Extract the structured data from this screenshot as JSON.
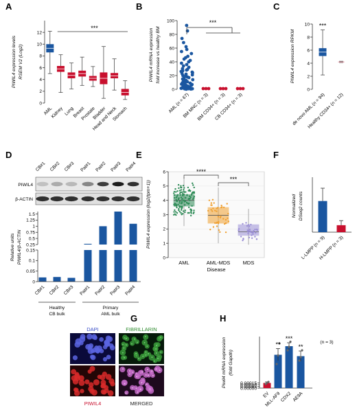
{
  "colors": {
    "blue": "#1a56a0",
    "red": "#c8102e",
    "green": "#2e8b57",
    "orange": "#f0a030",
    "lavender": "#9b8fd6",
    "grey": "#808080"
  },
  "panels": {
    "A": "A",
    "B": "B",
    "C": "C",
    "D": "D",
    "E": "E",
    "F": "F",
    "G": "G",
    "H": "H"
  },
  "panel_d": {
    "lane_labels": [
      "CB#1",
      "CB#2",
      "CB#3",
      "Pat#1",
      "Pat#2",
      "Pat#3",
      "Pat#4"
    ],
    "blot1": "PIWIL4",
    "blot2": "β-ACTIN",
    "group1_line1": "Healthy",
    "group1_line2": "CB bulk",
    "group2_line1": "Primary",
    "group2_line2": "AML bulk"
  },
  "panel_g": {
    "labels": [
      "DAPI",
      "FIBRILLARIN",
      "PIWIL4",
      "MERGED"
    ]
  },
  "chart_data": [
    {
      "panel": "A",
      "type": "box",
      "title": "",
      "ylabel_line1": "PIWIL4 expression levels",
      "ylabel_line2": "RSEM V2 (Log2)",
      "categories": [
        "AML",
        "Kidney",
        "Lung",
        "Breast",
        "Prostate",
        "Bladder",
        "Head and Neck",
        "Stomach"
      ],
      "boxes": [
        {
          "min": 5.0,
          "q1": 8.6,
          "median": 9.3,
          "q3": 10.0,
          "max": 12.2
        },
        {
          "min": 1.8,
          "q1": 5.3,
          "median": 5.8,
          "q3": 6.3,
          "max": 8.2
        },
        {
          "min": 2.4,
          "q1": 4.2,
          "median": 4.7,
          "q3": 5.2,
          "max": 6.8
        },
        {
          "min": 3.0,
          "q1": 4.5,
          "median": 5.0,
          "q3": 5.5,
          "max": 7.8
        },
        {
          "min": 2.8,
          "q1": 3.8,
          "median": 4.2,
          "q3": 4.6,
          "max": 6.2
        },
        {
          "min": 0.8,
          "q1": 3.2,
          "median": 4.2,
          "q3": 5.2,
          "max": 9.6
        },
        {
          "min": 2.2,
          "q1": 4.2,
          "median": 4.6,
          "q3": 5.1,
          "max": 7.5
        },
        {
          "min": 0.6,
          "q1": 1.3,
          "median": 1.8,
          "q3": 2.4,
          "max": 3.8
        }
      ],
      "ylim": [
        0,
        14
      ],
      "yticks": [
        0,
        2,
        4,
        6,
        8,
        10,
        12
      ],
      "significance": "***"
    },
    {
      "panel": "B",
      "type": "scatter",
      "title": "",
      "ylabel_line1": "PIWIL4 mRNA expression",
      "ylabel_line2": "fold increase vs healthy BM",
      "categories": [
        "AML (n = 67)",
        "BM MNC (n = 3)",
        "BM CD34+ (n = 3)",
        "CB CD34+ (n = 3)"
      ],
      "ylim": [
        0,
        100
      ],
      "yticks": [
        0,
        20,
        40,
        60,
        80,
        100
      ],
      "series": [
        {
          "values": [
            93,
            85,
            74,
            68,
            62,
            58,
            55,
            52,
            48,
            46,
            44,
            42,
            40,
            38,
            36,
            34,
            32,
            30,
            29,
            28,
            27,
            26,
            25,
            24,
            23,
            22,
            21,
            20,
            19,
            18,
            17,
            16,
            15,
            14,
            13,
            12,
            11,
            10,
            9.5,
            9,
            8.5,
            8,
            7.5,
            7,
            6.5,
            6,
            5.5,
            5,
            4.5,
            4,
            3.5,
            3,
            2.5,
            2,
            1.8,
            1.6,
            1.4,
            1.2,
            1.0,
            0.9,
            0.8,
            0.7,
            0.6,
            0.5,
            0.4,
            0.3,
            0.2
          ]
        },
        {
          "values": [
            1,
            1,
            1
          ]
        },
        {
          "values": [
            1,
            1,
            1
          ]
        },
        {
          "values": [
            1,
            1,
            1
          ]
        }
      ],
      "significance": "***"
    },
    {
      "panel": "C",
      "type": "box",
      "title": "",
      "ylabel": "PIWIL4 expression RPKM",
      "categories": [
        "de novo AML (n = 94)",
        "Healthy CD34+ (n = 12)"
      ],
      "boxes": [
        {
          "min": 2.2,
          "q1": 5.1,
          "median": 5.7,
          "q3": 6.3,
          "max": 9.1
        },
        {
          "min": 4.1,
          "q1": 4.15,
          "median": 4.2,
          "q3": 4.25,
          "max": 4.3
        }
      ],
      "ylim": [
        0,
        10
      ],
      "yticks": [
        0,
        2,
        4,
        6,
        8,
        10
      ],
      "significance": "***"
    },
    {
      "panel": "D",
      "type": "bar",
      "title": "",
      "ylabel_line1": "Relative units",
      "ylabel_line2": "PIWIL4/β-ACTIN",
      "categories": [
        "CB#1",
        "CB#2",
        "CB#3",
        "Pat#1",
        "Pat#2",
        "Pat#3",
        "Pat#4"
      ],
      "values": [
        0.02,
        0.022,
        0.018,
        0.28,
        1.0,
        1.6,
        1.1
      ],
      "yticks_upper": [
        0.25,
        0.5,
        0.75,
        1.0,
        1.25,
        1.5
      ],
      "yticks_lower": [
        0.0,
        0.05,
        0.1,
        0.15
      ]
    },
    {
      "panel": "E",
      "type": "box",
      "title": "",
      "ylabel": "PIWIL4 expression (log2(tpm+1))",
      "xlabel": "Disease",
      "categories": [
        "AML",
        "AML-MDS",
        "MDS"
      ],
      "boxes": [
        {
          "min": 2.2,
          "q1": 3.6,
          "median": 4.0,
          "q3": 4.4,
          "max": 5.6
        },
        {
          "min": 1.0,
          "q1": 2.4,
          "median": 2.95,
          "q3": 3.5,
          "max": 4.9
        },
        {
          "min": 0.9,
          "q1": 1.55,
          "median": 1.8,
          "q3": 2.3,
          "max": 3.4
        }
      ],
      "ylim": [
        0,
        6
      ],
      "yticks": [
        0,
        1,
        2,
        3,
        4,
        5,
        6
      ],
      "significance": [
        "****",
        "***"
      ]
    },
    {
      "panel": "F",
      "type": "bar",
      "title": "",
      "ylabel_line1": "Normalized",
      "ylabel_line2": "DSeq2 counts",
      "categories": [
        "L-LMPP (n = 9)",
        "H-LMPP (n = 3)"
      ],
      "values": [
        170,
        38
      ],
      "errors": [
        70,
        25
      ],
      "ylim": [
        0,
        300
      ],
      "yticks": [
        0,
        100,
        200,
        300
      ]
    },
    {
      "panel": "H",
      "type": "bar",
      "title": "",
      "ylabel_line1": "Piwil4 mRNA expression",
      "ylabel_line2": "(fold Gapdh)",
      "categories": [
        "EV",
        "MLL-AF9",
        "CDX2",
        "AE9A"
      ],
      "values": [
        0.00015,
        0.00097,
        0.00122,
        0.00093
      ],
      "errors": [
        3e-05,
        0.00018,
        0.0001,
        0.00015
      ],
      "points": [
        [
          0.00012,
          0.00016,
          0.00018
        ],
        [
          0.0007,
          0.00095,
          0.0013
        ],
        [
          0.0011,
          0.0012,
          0.00135
        ],
        [
          0.0008,
          0.0009,
          0.0011
        ]
      ],
      "significance": [
        "",
        "**",
        "***",
        "**"
      ],
      "annotation": "(n = 3)",
      "ylim": [
        0,
        0.0015
      ],
      "yticks": [
        "0.00000",
        "0.00005",
        "0.00010",
        "0.00015"
      ]
    }
  ]
}
